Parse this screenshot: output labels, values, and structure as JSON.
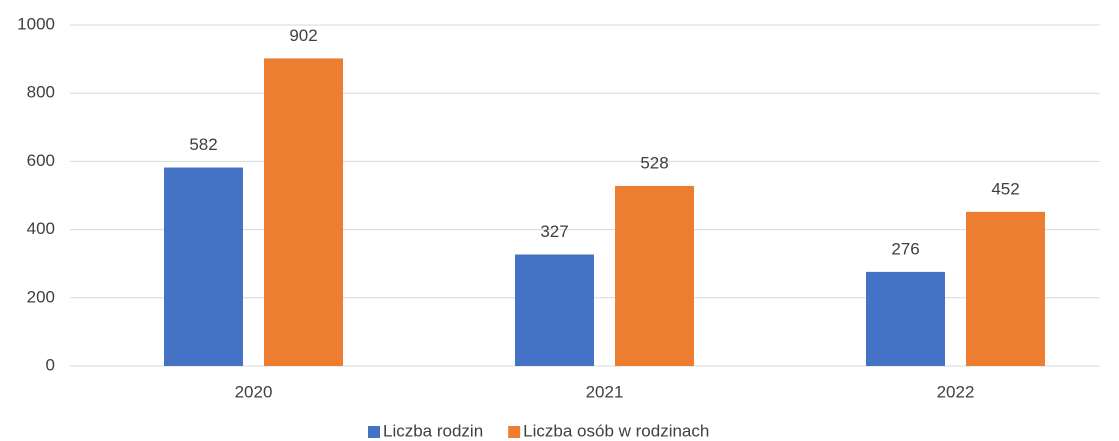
{
  "chart_data": {
    "type": "bar",
    "categories": [
      "2020",
      "2021",
      "2022"
    ],
    "series": [
      {
        "name": "Liczba rodzin",
        "color": "#4472c4",
        "values": [
          582,
          327,
          276
        ]
      },
      {
        "name": "Liczba osób w rodzinach",
        "color": "#ed7d31",
        "values": [
          902,
          528,
          452
        ]
      }
    ],
    "ylim": [
      0,
      1000
    ],
    "yticks": [
      0,
      200,
      400,
      600,
      800,
      1000
    ],
    "grid": true,
    "legend": "bottom"
  }
}
